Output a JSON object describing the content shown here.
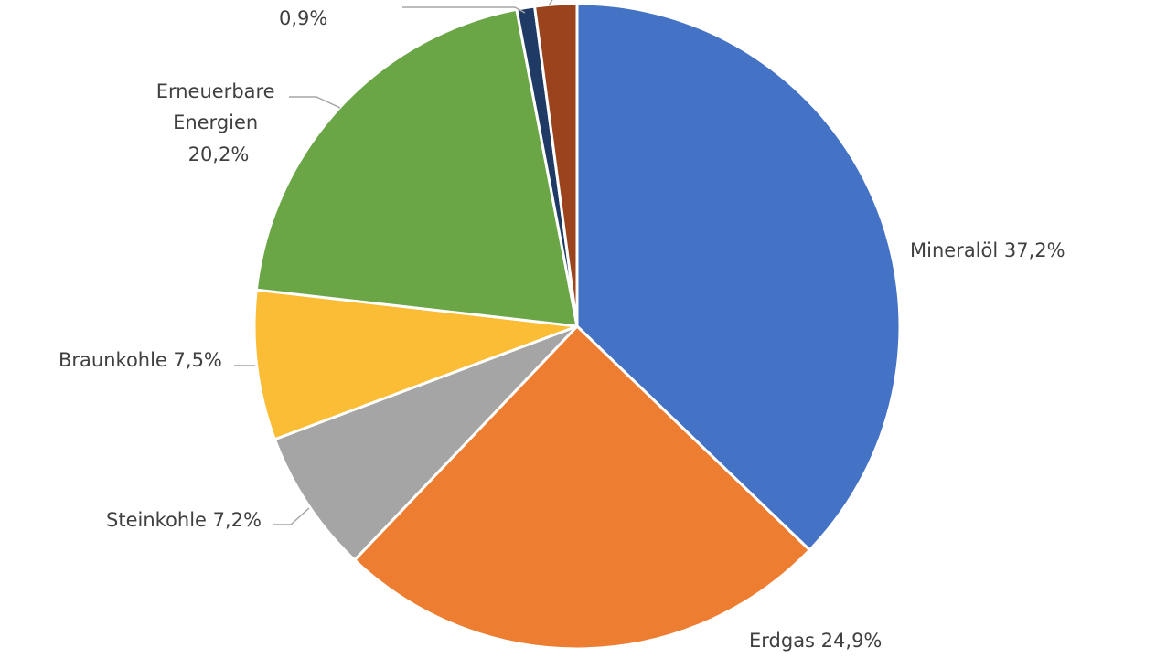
{
  "chart_data": {
    "type": "pie",
    "title": "",
    "start_angle_deg": 0,
    "direction": "clockwise",
    "legend": "none",
    "slices": [
      {
        "name": "Mineralöl",
        "value": 37.2,
        "label": "Mineralöl 37,2%",
        "color": "#4472c4"
      },
      {
        "name": "Erdgas",
        "value": 24.9,
        "label": "Erdgas 24,9%",
        "color": "#ed7d31"
      },
      {
        "name": "Steinkohle",
        "value": 7.2,
        "label": "Steinkohle 7,2%",
        "color": "#a5a5a5"
      },
      {
        "name": "Braunkohle",
        "value": 7.5,
        "label": "Braunkohle 7,5%",
        "color": "#fbbc36"
      },
      {
        "name": "Erneuerbare Energien",
        "value": 20.2,
        "label_lines": [
          "Erneuerbare",
          "Energien",
          "20,2%"
        ],
        "color": "#6aa546"
      },
      {
        "name": "",
        "value": 0.9,
        "label": "0,9%",
        "color": "#1f3a64"
      },
      {
        "name": "",
        "value": 2.1,
        "label": "",
        "color": "#9a431c"
      }
    ]
  }
}
